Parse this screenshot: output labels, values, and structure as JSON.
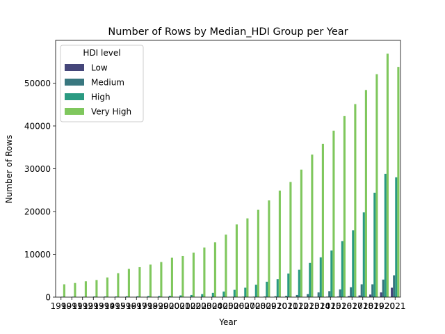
{
  "chart_data": {
    "type": "bar",
    "title": "Number of Rows by Median_HDI Group per Year",
    "xlabel": "Year",
    "ylabel": "Number of Rows",
    "categories": [
      "1990",
      "1991",
      "1992",
      "1993",
      "1994",
      "1995",
      "1996",
      "1997",
      "1998",
      "1999",
      "2000",
      "2001",
      "2002",
      "2003",
      "2004",
      "2005",
      "2006",
      "2007",
      "2008",
      "2009",
      "2010",
      "2011",
      "2012",
      "2013",
      "2014",
      "2015",
      "2016",
      "2017",
      "2018",
      "2019",
      "2020",
      "2021"
    ],
    "ylim": [
      0,
      60000
    ],
    "yticks": [
      0,
      10000,
      20000,
      30000,
      40000,
      50000
    ],
    "ytick_labels": [
      "0",
      "10000",
      "20000",
      "30000",
      "40000",
      "50000"
    ],
    "grid": false,
    "legend": {
      "title": "HDI level",
      "placement": "top-left"
    },
    "series": [
      {
        "name": "Low",
        "color": "#45467a",
        "values": [
          0,
          0,
          0,
          0,
          0,
          0,
          0,
          0,
          0,
          0,
          0,
          0,
          0,
          0,
          0,
          0,
          0,
          0,
          0,
          0,
          0,
          0,
          0,
          0,
          50,
          100,
          150,
          250,
          400,
          600,
          1100,
          2200
        ]
      },
      {
        "name": "Medium",
        "color": "#39777f",
        "values": [
          0,
          0,
          0,
          0,
          0,
          0,
          0,
          0,
          0,
          0,
          0,
          0,
          0,
          0,
          0,
          0,
          50,
          100,
          100,
          150,
          200,
          300,
          500,
          700,
          1100,
          1400,
          1800,
          2300,
          3000,
          3000,
          4100,
          5100
        ]
      },
      {
        "name": "High",
        "color": "#2a9a81",
        "values": [
          100,
          100,
          100,
          150,
          150,
          150,
          200,
          200,
          250,
          250,
          300,
          400,
          500,
          700,
          1000,
          1300,
          1700,
          2200,
          2900,
          3600,
          4200,
          5500,
          6400,
          8000,
          9300,
          10900,
          13100,
          15600,
          19800,
          24400,
          28800,
          28000
        ]
      },
      {
        "name": "Very High",
        "color": "#7fc75d",
        "values": [
          3000,
          3300,
          3700,
          4000,
          4600,
          5600,
          6600,
          7000,
          7600,
          8200,
          9200,
          9600,
          10400,
          11600,
          12800,
          14600,
          17000,
          18400,
          20400,
          22600,
          24900,
          26900,
          29800,
          33300,
          35800,
          38900,
          42300,
          45100,
          48400,
          52100,
          56900,
          53800
        ]
      }
    ]
  }
}
